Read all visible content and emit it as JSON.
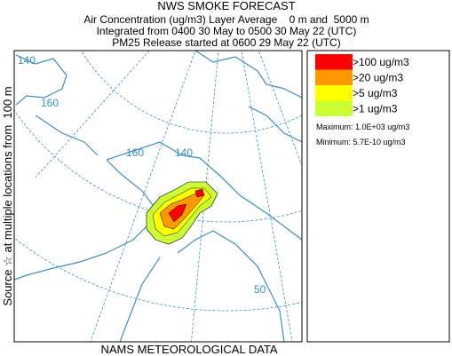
{
  "header": {
    "title": "NWS SMOKE FORECAST",
    "lines": [
      "Air Concentration (ug/m3) Layer Average    0 m and  5000 m",
      "Integrated from 0400 30 May to 0500 30 May 22 (UTC)",
      "PM25 Release started at 0600 29 May 22 (UTC)"
    ]
  },
  "side_label": "Source ☆ at multiple locations from  100 m",
  "footer": "NAMS METEOROLOGICAL DATA",
  "map": {
    "grid_labels": [
      "140",
      "160",
      "160",
      "140",
      "50"
    ]
  },
  "legend": {
    "items": [
      {
        "label": ">100 ug/m3",
        "color": "#ff0000"
      },
      {
        "label": ">20 ug/m3",
        "color": "#ff9900"
      },
      {
        "label": ">5 ug/m3",
        "color": "#ffff00"
      },
      {
        "label": ">1 ug/m3",
        "color": "#ccff33"
      }
    ],
    "maximum": "Maximum: 1.0E+03 ug/m3",
    "minimum": "Minimum: 5.7E-10 ug/m3"
  }
}
